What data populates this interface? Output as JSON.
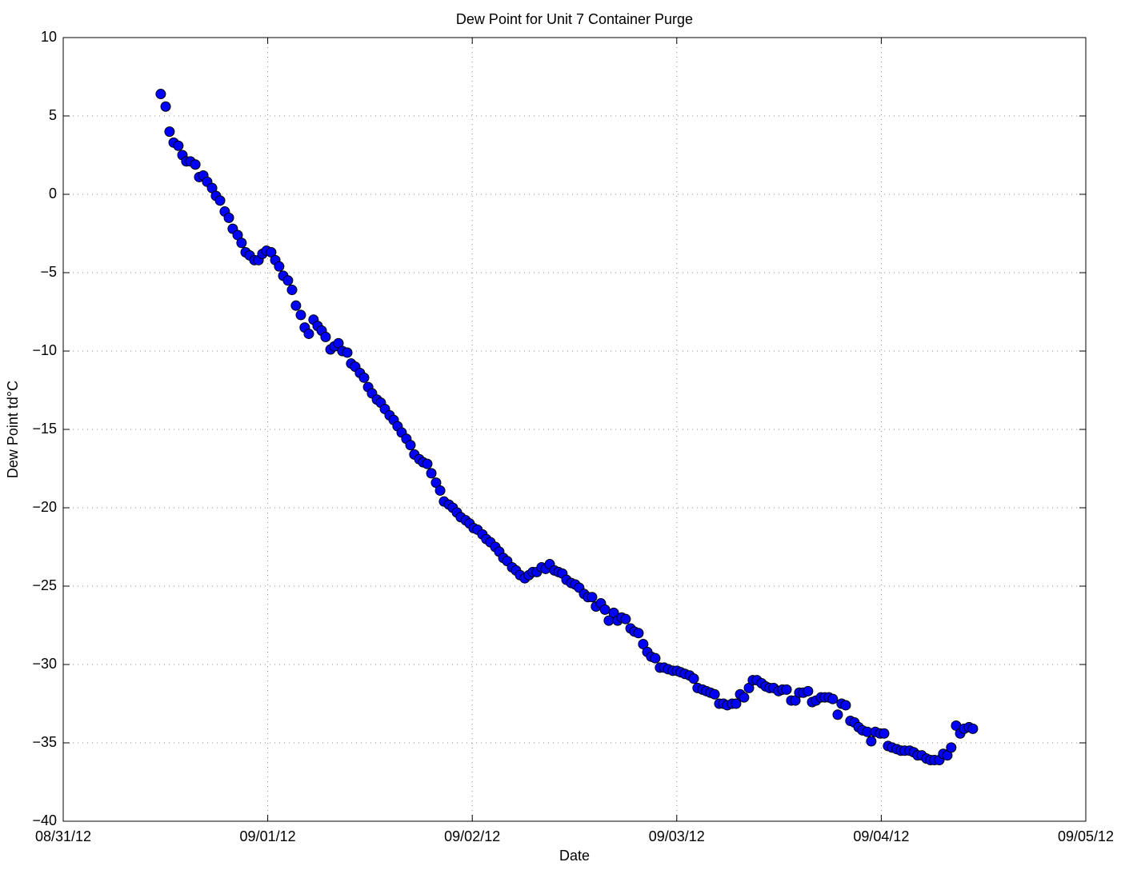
{
  "chart_data": {
    "type": "scatter",
    "title": "Dew Point for Unit 7 Container Purge",
    "x_label": "Date",
    "y_label": "Dew Point td°C",
    "xlim": [
      0,
      5
    ],
    "xticks": [
      {
        "value": 0,
        "label": "08/31/12"
      },
      {
        "value": 1,
        "label": "09/01/12"
      },
      {
        "value": 2,
        "label": "09/02/12"
      },
      {
        "value": 3,
        "label": "09/03/12"
      },
      {
        "value": 4,
        "label": "09/04/12"
      },
      {
        "value": 5,
        "label": "09/05/12"
      }
    ],
    "ylim": [
      -40,
      10
    ],
    "yticks": [
      {
        "value": -40,
        "label": "−40"
      },
      {
        "value": -35,
        "label": "−35"
      },
      {
        "value": -30,
        "label": "−30"
      },
      {
        "value": -25,
        "label": "−25"
      },
      {
        "value": -20,
        "label": "−20"
      },
      {
        "value": -15,
        "label": "−15"
      },
      {
        "value": -10,
        "label": "−10"
      },
      {
        "value": -5,
        "label": "−5"
      },
      0,
      5,
      10
    ],
    "grid": true,
    "series": [
      {
        "color": "#0000ff",
        "x": [
          0.477,
          0.501,
          0.52,
          0.54,
          0.563,
          0.583,
          0.602,
          0.622,
          0.646,
          0.665,
          0.685,
          0.704,
          0.728,
          0.747,
          0.767,
          0.79,
          0.81,
          0.829,
          0.853,
          0.872,
          0.892,
          0.912,
          0.935,
          0.955,
          0.974,
          0.994,
          1.017,
          1.037,
          1.056,
          1.076,
          1.099,
          1.119,
          1.138,
          1.162,
          1.181,
          1.201,
          1.224,
          1.244,
          1.264,
          1.283,
          1.307,
          1.326,
          1.346,
          1.365,
          1.389,
          1.408,
          1.428,
          1.451,
          1.471,
          1.491,
          1.51,
          1.534,
          1.553,
          1.573,
          1.596,
          1.616,
          1.635,
          1.655,
          1.678,
          1.698,
          1.717,
          1.741,
          1.76,
          1.78,
          1.8,
          1.823,
          1.843,
          1.862,
          1.886,
          1.905,
          1.925,
          1.944,
          1.968,
          1.987,
          2.007,
          2.026,
          2.05,
          2.069,
          2.089,
          2.113,
          2.132,
          2.152,
          2.171,
          2.195,
          2.214,
          2.234,
          2.257,
          2.277,
          2.296,
          2.316,
          2.339,
          2.359,
          2.379,
          2.402,
          2.422,
          2.441,
          2.461,
          2.484,
          2.504,
          2.523,
          2.547,
          2.566,
          2.586,
          2.605,
          2.629,
          2.649,
          2.668,
          2.692,
          2.711,
          2.731,
          2.75,
          2.774,
          2.793,
          2.813,
          2.836,
          2.856,
          2.875,
          2.895,
          2.918,
          2.938,
          2.958,
          2.981,
          3.001,
          3.02,
          3.04,
          3.063,
          3.083,
          3.102,
          3.126,
          3.145,
          3.165,
          3.185,
          3.208,
          3.228,
          3.247,
          3.271,
          3.29,
          3.31,
          3.329,
          3.353,
          3.372,
          3.392,
          3.415,
          3.435,
          3.454,
          3.474,
          3.498,
          3.517,
          3.537,
          3.56,
          3.58,
          3.599,
          3.619,
          3.642,
          3.662,
          3.681,
          3.705,
          3.724,
          3.744,
          3.763,
          3.787,
          3.806,
          3.826,
          3.849,
          3.869,
          3.889,
          3.908,
          3.932,
          3.951,
          3.971,
          3.994,
          4.014,
          4.033,
          4.053,
          4.076,
          4.096,
          4.115,
          4.139,
          4.159,
          4.178,
          4.198,
          4.221,
          4.241,
          4.26,
          4.284,
          4.303,
          4.323,
          4.342,
          4.366,
          4.386,
          4.405,
          4.429,
          4.448
        ],
        "values": [
          6.4,
          5.6,
          4.0,
          3.3,
          3.1,
          2.5,
          2.1,
          2.1,
          1.9,
          1.1,
          1.2,
          0.8,
          0.4,
          -0.1,
          -0.4,
          -1.1,
          -1.5,
          -2.2,
          -2.6,
          -3.1,
          -3.7,
          -3.9,
          -4.2,
          -4.2,
          -3.8,
          -3.6,
          -3.7,
          -4.2,
          -4.6,
          -5.2,
          -5.5,
          -6.1,
          -7.1,
          -7.7,
          -8.5,
          -8.9,
          -8.0,
          -8.4,
          -8.7,
          -9.1,
          -9.9,
          -9.7,
          -9.5,
          -10.0,
          -10.1,
          -10.8,
          -11.0,
          -11.4,
          -11.7,
          -12.3,
          -12.7,
          -13.1,
          -13.3,
          -13.7,
          -14.1,
          -14.4,
          -14.8,
          -15.2,
          -15.6,
          -16.0,
          -16.6,
          -16.9,
          -17.1,
          -17.2,
          -17.8,
          -18.4,
          -18.9,
          -19.6,
          -19.8,
          -20.0,
          -20.3,
          -20.6,
          -20.8,
          -21.0,
          -21.3,
          -21.4,
          -21.7,
          -22.0,
          -22.2,
          -22.5,
          -22.8,
          -23.2,
          -23.4,
          -23.8,
          -24.0,
          -24.3,
          -24.5,
          -24.3,
          -24.1,
          -24.1,
          -23.8,
          -23.9,
          -23.6,
          -24.0,
          -24.1,
          -24.2,
          -24.6,
          -24.8,
          -24.9,
          -25.1,
          -25.5,
          -25.7,
          -25.7,
          -26.3,
          -26.1,
          -26.5,
          -27.2,
          -26.7,
          -27.2,
          -27.0,
          -27.1,
          -27.7,
          -27.9,
          -28.0,
          -28.7,
          -29.2,
          -29.5,
          -29.6,
          -30.2,
          -30.2,
          -30.3,
          -30.4,
          -30.4,
          -30.5,
          -30.6,
          -30.7,
          -30.9,
          -31.5,
          -31.6,
          -31.7,
          -31.8,
          -31.9,
          -32.5,
          -32.5,
          -32.6,
          -32.5,
          -32.5,
          -31.9,
          -32.1,
          -31.5,
          -31.0,
          -31.0,
          -31.2,
          -31.4,
          -31.5,
          -31.5,
          -31.7,
          -31.6,
          -31.6,
          -32.3,
          -32.3,
          -31.8,
          -31.8,
          -31.7,
          -32.4,
          -32.3,
          -32.1,
          -32.1,
          -32.1,
          -32.2,
          -33.2,
          -32.5,
          -32.6,
          -33.6,
          -33.7,
          -34.0,
          -34.2,
          -34.3,
          -34.9,
          -34.3,
          -34.4,
          -34.4,
          -35.2,
          -35.3,
          -35.4,
          -35.5,
          -35.5,
          -35.5,
          -35.6,
          -35.8,
          -35.8,
          -36.0,
          -36.1,
          -36.1,
          -36.1,
          -35.7,
          -35.8,
          -35.3,
          -33.9,
          -34.4,
          -34.1,
          -34.0,
          -34.1
        ]
      }
    ]
  }
}
